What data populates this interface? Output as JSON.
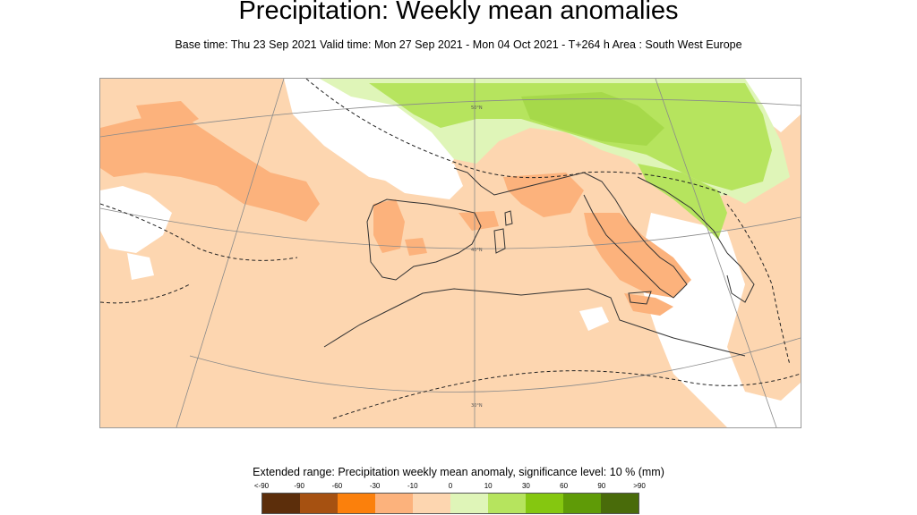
{
  "title": "Precipitation: Weekly mean anomalies",
  "subtitle": "Base time: Thu 23 Sep 2021 Valid time: Mon 27 Sep 2021 - Mon 04 Oct 2021 - T+264 h Area : South West Europe",
  "legend": {
    "title": "Extended range: Precipitation weekly mean anomaly, significance level: 10 % (mm)",
    "labels": [
      "<-90",
      "-90",
      "-60",
      "-30",
      "-10",
      "0",
      "10",
      "30",
      "60",
      "90",
      ">90"
    ],
    "colors": [
      "#5c2e0b",
      "#a65111",
      "#fb800c",
      "#fcb27c",
      "#fdd6b0",
      "#dff5b8",
      "#b6e45e",
      "#85c710",
      "#5f9b07",
      "#496b0a"
    ]
  },
  "map": {
    "grid_labels": [
      "50°N",
      "40°N",
      "30°N"
    ],
    "colors": {
      "dry_light": "#fdd6b0",
      "dry_medium": "#fcb27c",
      "dry_strong": "#fb9d52",
      "wet_light": "#dff5b8",
      "wet_medium": "#b6e45e",
      "wet_strong": "#a6d94a",
      "neutral": "#ffffff"
    }
  }
}
